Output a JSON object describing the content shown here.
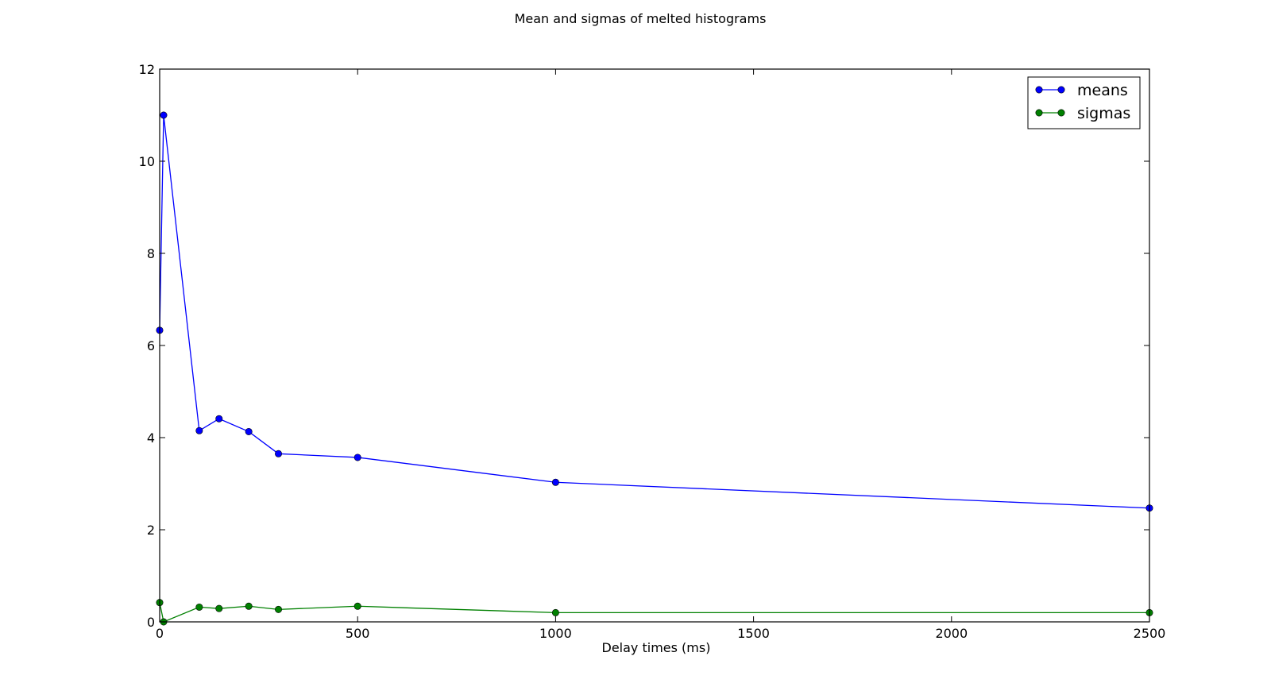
{
  "chart_data": {
    "type": "line",
    "title": "Mean and sigmas of melted histograms",
    "xlabel": "Delay times (ms)",
    "ylabel": "",
    "xlim": [
      0,
      2500
    ],
    "ylim": [
      0,
      12
    ],
    "xticks": [
      0,
      500,
      1000,
      1500,
      2000,
      2500
    ],
    "yticks": [
      0,
      2,
      4,
      6,
      8,
      10,
      12
    ],
    "x": [
      0,
      10,
      100,
      150,
      225,
      300,
      500,
      1000,
      2500
    ],
    "series": [
      {
        "name": "means",
        "color": "#0000ff",
        "marker": "circle",
        "values": [
          6.33,
          11.0,
          4.15,
          4.41,
          4.13,
          3.65,
          3.57,
          3.03,
          2.47
        ]
      },
      {
        "name": "sigmas",
        "color": "#008000",
        "marker": "circle",
        "values": [
          0.42,
          0.0,
          0.32,
          0.29,
          0.34,
          0.27,
          0.34,
          0.2,
          0.2
        ]
      }
    ],
    "legend": "top-right",
    "grid": false
  }
}
